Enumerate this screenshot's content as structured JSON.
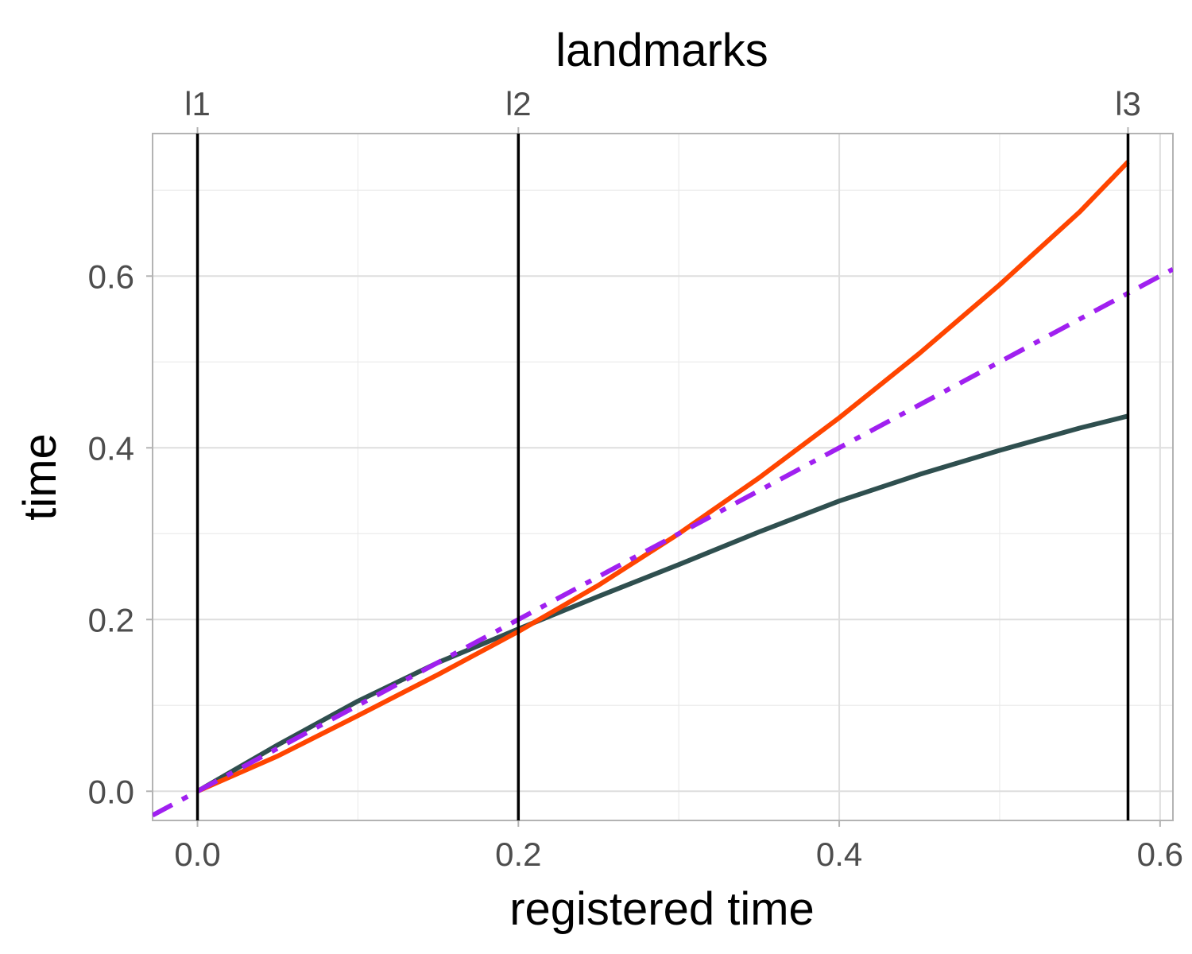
{
  "chart_data": {
    "type": "line",
    "title": "landmarks",
    "xlabel": "registered time",
    "ylabel": "time",
    "xlim": [
      -0.028,
      0.608
    ],
    "ylim": [
      -0.034,
      0.766
    ],
    "x_ticks": [
      0.0,
      0.2,
      0.4,
      0.6
    ],
    "x_tick_labels": [
      "0.0",
      "0.2",
      "0.4",
      "0.6"
    ],
    "y_ticks": [
      0.0,
      0.2,
      0.4,
      0.6
    ],
    "y_tick_labels": [
      "0.0",
      "0.2",
      "0.4",
      "0.6"
    ],
    "grid": true,
    "landmarks": [
      {
        "label": "l1",
        "x": 0.0
      },
      {
        "label": "l2",
        "x": 0.2
      },
      {
        "label": "l3",
        "x": 0.58
      }
    ],
    "series": [
      {
        "color": "#2f4f4f",
        "style": "solid",
        "x": [
          0.0,
          0.05,
          0.1,
          0.15,
          0.2,
          0.25,
          0.3,
          0.35,
          0.4,
          0.45,
          0.5,
          0.55,
          0.58
        ],
        "y": [
          0.0,
          0.054,
          0.105,
          0.15,
          0.189,
          0.227,
          0.264,
          0.302,
          0.338,
          0.369,
          0.397,
          0.423,
          0.437
        ]
      },
      {
        "color": "#ff4500",
        "style": "solid",
        "x": [
          0.0,
          0.05,
          0.1,
          0.15,
          0.2,
          0.25,
          0.3,
          0.35,
          0.4,
          0.45,
          0.5,
          0.55,
          0.58
        ],
        "y": [
          0.0,
          0.041,
          0.088,
          0.136,
          0.186,
          0.24,
          0.3,
          0.365,
          0.435,
          0.51,
          0.59,
          0.675,
          0.733
        ]
      },
      {
        "color": "#a020f0",
        "style": "dashdot",
        "x": [
          -0.028,
          0.608
        ],
        "y": [
          -0.028,
          0.608
        ]
      }
    ]
  }
}
